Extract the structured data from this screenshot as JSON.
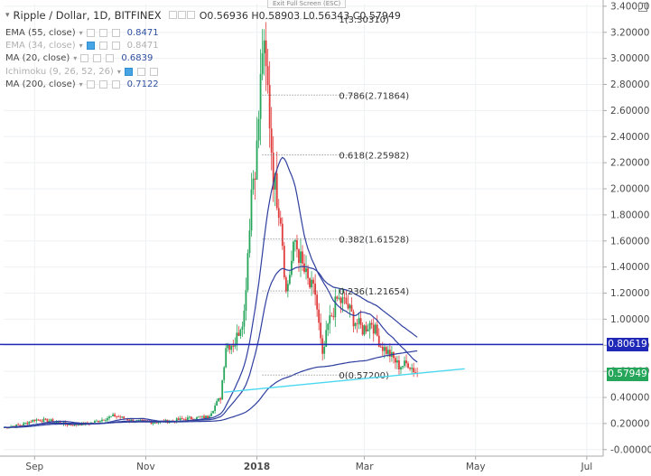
{
  "header": {
    "symbol_title": "Ripple / Dollar, 1D, BITFINEX",
    "ohlc": "O0.56936  H0.58903  L0.56343  C0.57949",
    "exit_fullscreen": "Exit Full Screen (ESC)"
  },
  "indicators": [
    {
      "label": "EMA (55, close)",
      "value": "0.8471",
      "dim": false
    },
    {
      "label": "EMA (34, close)",
      "value": "0.8471",
      "dim": true
    },
    {
      "label": "MA (20, close)",
      "value": "0.6839",
      "dim": false
    },
    {
      "label": "Ichimoku (9, 26, 52, 26)",
      "value": "",
      "dim": true
    },
    {
      "label": "MA (200, close)",
      "value": "0.7122",
      "dim": false
    }
  ],
  "price_tags": {
    "horizontal_line": {
      "text": "0.80619",
      "color": "#2028b8"
    },
    "last_price": {
      "text": "0.57949",
      "color": "#26a65b"
    }
  },
  "colors": {
    "candle_up": "#26a65b",
    "candle_down": "#e03c3c",
    "ma_line": "#2e3f9f",
    "horizontal_line": "#2028b8",
    "trendline": "#4ad8f0",
    "fib_line": "#777777"
  },
  "chart_data": {
    "type": "candlestick",
    "title": "Ripple / Dollar, 1D, BITFINEX",
    "y_axis": {
      "range": [
        -0.05,
        3.42
      ],
      "ticks": [
        "3.40000",
        "3.20000",
        "3.00000",
        "2.80000",
        "2.60000",
        "2.40000",
        "2.20000",
        "2.00000",
        "1.80000",
        "1.60000",
        "1.40000",
        "1.20000",
        "1.00000",
        "0.80000",
        "0.60000",
        "0.40000",
        "0.20000",
        "-0.00000"
      ],
      "tick_values": [
        3.4,
        3.2,
        3.0,
        2.8,
        2.6,
        2.4,
        2.2,
        2.0,
        1.8,
        1.6,
        1.4,
        1.2,
        1.0,
        0.8,
        0.6,
        0.4,
        0.2,
        0.0
      ]
    },
    "x_axis": {
      "range": [
        "2017-08-15",
        "2018-07-10"
      ],
      "ticks": [
        {
          "label": "Sep",
          "date": "2017-09-01",
          "bold": false
        },
        {
          "label": "Nov",
          "date": "2017-11-01",
          "bold": false
        },
        {
          "label": "2018",
          "date": "2018-01-01",
          "bold": true
        },
        {
          "label": "Mar",
          "date": "2018-03-01",
          "bold": false
        },
        {
          "label": "May",
          "date": "2018-05-01",
          "bold": false
        },
        {
          "label": "Jul",
          "date": "2018-07-01",
          "bold": false
        }
      ]
    },
    "close_series": {
      "start_date": "2017-08-15",
      "approx_closes_by_date": [
        [
          "2017-08-15",
          0.17
        ],
        [
          "2017-08-25",
          0.19
        ],
        [
          "2017-09-01",
          0.23
        ],
        [
          "2017-09-10",
          0.22
        ],
        [
          "2017-09-20",
          0.19
        ],
        [
          "2017-10-01",
          0.2
        ],
        [
          "2017-10-15",
          0.26
        ],
        [
          "2017-10-25",
          0.22
        ],
        [
          "2017-11-05",
          0.21
        ],
        [
          "2017-11-15",
          0.22
        ],
        [
          "2017-11-25",
          0.24
        ],
        [
          "2017-12-05",
          0.25
        ],
        [
          "2017-12-12",
          0.4
        ],
        [
          "2017-12-15",
          0.8
        ],
        [
          "2017-12-20",
          0.82
        ],
        [
          "2017-12-25",
          1.05
        ],
        [
          "2017-12-29",
          2.0
        ],
        [
          "2018-01-01",
          2.3
        ],
        [
          "2018-01-03",
          2.8
        ],
        [
          "2018-01-04",
          3.1
        ],
        [
          "2018-01-07",
          2.75
        ],
        [
          "2018-01-10",
          2.1
        ],
        [
          "2018-01-14",
          1.8
        ],
        [
          "2018-01-17",
          1.2
        ],
        [
          "2018-01-22",
          1.6
        ],
        [
          "2018-01-26",
          1.4
        ],
        [
          "2018-01-30",
          1.25
        ],
        [
          "2018-02-02",
          1.2
        ],
        [
          "2018-02-06",
          0.7
        ],
        [
          "2018-02-09",
          0.95
        ],
        [
          "2018-02-14",
          1.15
        ],
        [
          "2018-02-19",
          1.12
        ],
        [
          "2018-02-23",
          1.0
        ],
        [
          "2018-02-28",
          0.92
        ],
        [
          "2018-03-05",
          0.98
        ],
        [
          "2018-03-10",
          0.8
        ],
        [
          "2018-03-15",
          0.73
        ],
        [
          "2018-03-20",
          0.64
        ],
        [
          "2018-03-25",
          0.66
        ],
        [
          "2018-03-30",
          0.58
        ]
      ]
    },
    "moving_averages": [
      {
        "label": "EMA (55, close)",
        "value_at_last": 0.8471
      },
      {
        "label": "MA (20, close)",
        "value_at_last": 0.6839
      },
      {
        "label": "MA (200, close)",
        "value_at_last": 0.7122
      }
    ],
    "fibonacci": {
      "from_price": 3.3031,
      "to_price": 0.572,
      "levels": [
        {
          "label": "1(3.30310)",
          "ratio": 1,
          "price": 3.3031
        },
        {
          "label": "0.786(2.71864)",
          "ratio": 0.786,
          "price": 2.71864
        },
        {
          "label": "0.618(2.25982)",
          "ratio": 0.618,
          "price": 2.25982
        },
        {
          "label": "0.382(1.61528)",
          "ratio": 0.382,
          "price": 1.61528
        },
        {
          "label": "0.236(1.21654)",
          "ratio": 0.236,
          "price": 1.21654
        },
        {
          "label": "0(0.57200)",
          "ratio": 0,
          "price": 0.572
        }
      ]
    },
    "horizontal_line": {
      "price": 0.80619
    },
    "trendline": {
      "from": {
        "date": "2017-12-14",
        "price": 0.44
      },
      "to": {
        "date": "2018-04-25",
        "price": 0.62
      }
    },
    "last_close": 0.57949,
    "grid": true
  }
}
